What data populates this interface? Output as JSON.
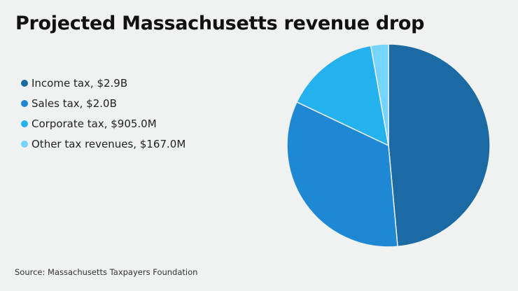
{
  "chart_data": {
    "type": "pie",
    "title": "Projected Massachusetts revenue drop",
    "source": "Source: Massachusetts Taxpayers Foundation",
    "unit": "USD millions",
    "start_angle": "12 o'clock",
    "direction": "clockwise",
    "legend_position": "left",
    "slices": [
      {
        "name": "Income tax",
        "label": "Income tax, $2.9B",
        "value": 2900,
        "color": "#1c6aa3"
      },
      {
        "name": "Sales tax",
        "label": "Sales tax, $2.0B",
        "value": 2000,
        "color": "#1e88d4"
      },
      {
        "name": "Corporate tax",
        "label": "Corporate tax, $905.0M",
        "value": 905,
        "color": "#24b2ee"
      },
      {
        "name": "Other tax revenues",
        "label": "Other tax revenues, $167.0M",
        "value": 167,
        "color": "#74d4fb"
      }
    ]
  }
}
